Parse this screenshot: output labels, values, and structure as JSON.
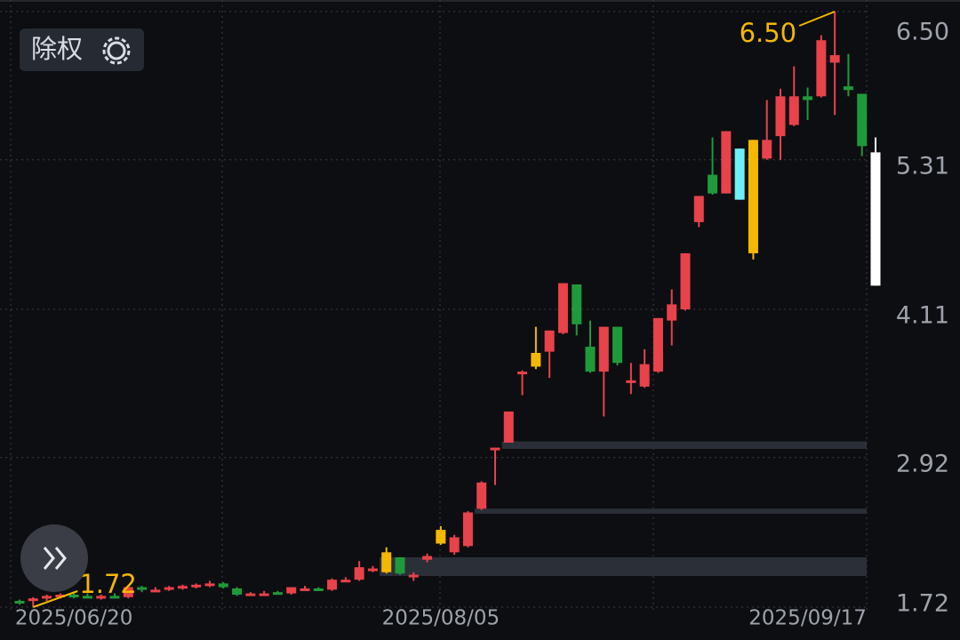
{
  "toolbar": {
    "adjust": "除权"
  },
  "chart_data": {
    "type": "candlestick",
    "categories": [
      null,
      null,
      null,
      null,
      "2025/06/20",
      null,
      null,
      null,
      null,
      null,
      null,
      null,
      null,
      null,
      null,
      null,
      null,
      null,
      null,
      null,
      null,
      null,
      null,
      null,
      null,
      null,
      null,
      null,
      null,
      null,
      null,
      "2025/08/05",
      null,
      null,
      null,
      null,
      null,
      null,
      null,
      null,
      null,
      null,
      null,
      null,
      null,
      null,
      null,
      null,
      null,
      null,
      null,
      null,
      null,
      null,
      null,
      null,
      null,
      null,
      "2025/09/17",
      null,
      null,
      null,
      null,
      null
    ],
    "open": [
      1.77,
      1.77,
      1.79,
      1.81,
      1.82,
      1.81,
      1.8,
      1.81,
      1.8,
      1.88,
      1.85,
      1.86,
      1.87,
      1.88,
      1.89,
      1.91,
      1.87,
      1.82,
      1.82,
      1.84,
      1.83,
      1.86,
      1.87,
      1.86,
      1.93,
      1.94,
      2.02,
      2.0,
      2.12,
      1.98,
      2.1,
      2.23,
      2.16,
      2.21,
      2.51,
      2.98,
      3.04,
      3.6,
      3.65,
      3.77,
      3.92,
      4.31,
      3.81,
      3.61,
      3.97,
      3.52,
      3.49,
      3.61,
      4.02,
      4.11,
      4.81,
      5.19,
      5.04,
      5.4,
      4.56,
      5.32,
      5.5,
      5.59,
      5.82,
      5.82,
      6.09,
      5.9,
      5.84,
      5.37
    ],
    "high": [
      1.78,
      1.8,
      1.82,
      1.83,
      1.84,
      1.83,
      1.82,
      1.83,
      1.89,
      1.89,
      1.88,
      1.89,
      1.9,
      1.91,
      1.93,
      1.92,
      1.88,
      1.84,
      1.85,
      1.85,
      1.88,
      1.89,
      1.88,
      1.95,
      1.96,
      2.09,
      2.05,
      2.2,
      2.12,
      2.0,
      2.15,
      2.37,
      2.3,
      2.49,
      2.73,
      3.0,
      3.29,
      3.62,
      3.97,
      3.94,
      4.32,
      4.31,
      4.02,
      3.97,
      3.97,
      3.68,
      3.79,
      4.04,
      4.27,
      4.56,
      5.02,
      5.49,
      5.54,
      5.4,
      5.47,
      5.79,
      5.88,
      6.06,
      5.89,
      6.31,
      6.5,
      6.16,
      5.84,
      5.49
    ],
    "low": [
      1.74,
      1.72,
      1.77,
      1.79,
      1.79,
      1.79,
      1.78,
      1.79,
      1.79,
      1.84,
      1.84,
      1.85,
      1.86,
      1.87,
      1.88,
      1.87,
      1.81,
      1.81,
      1.81,
      1.82,
      1.82,
      1.85,
      1.85,
      1.85,
      1.92,
      1.93,
      2.0,
      1.99,
      1.98,
      1.93,
      2.08,
      2.22,
      2.14,
      2.2,
      2.5,
      2.7,
      3.04,
      3.42,
      3.63,
      3.56,
      3.91,
      3.9,
      3.6,
      3.25,
      3.66,
      3.43,
      3.48,
      3.6,
      3.82,
      4.1,
      4.77,
      5.03,
      5.04,
      4.99,
      4.51,
      5.31,
      5.31,
      5.58,
      5.63,
      5.81,
      5.67,
      5.82,
      5.34,
      4.3
    ],
    "close": [
      1.76,
      1.79,
      1.81,
      1.82,
      1.81,
      1.8,
      1.81,
      1.8,
      1.88,
      1.86,
      1.86,
      1.88,
      1.89,
      1.9,
      1.91,
      1.88,
      1.82,
      1.83,
      1.83,
      1.83,
      1.88,
      1.87,
      1.86,
      1.94,
      1.94,
      2.04,
      2.03,
      2.16,
      1.99,
      1.96,
      2.13,
      2.34,
      2.28,
      2.48,
      2.72,
      3.0,
      3.29,
      3.61,
      3.76,
      3.94,
      4.32,
      3.99,
      3.61,
      3.97,
      3.68,
      3.54,
      3.67,
      4.04,
      4.15,
      4.56,
      5.02,
      5.04,
      5.54,
      4.99,
      5.47,
      5.47,
      5.82,
      5.82,
      5.79,
      6.27,
      6.15,
      5.87,
      5.42,
      4.3
    ],
    "colors": [
      "#1f9a3a",
      "#e8424a",
      "#e8424a",
      "#e8424a",
      "#1f9a3a",
      "#1f9a3a",
      "#e8424a",
      "#1f9a3a",
      "#e8424a",
      "#1f9a3a",
      "#e8424a",
      "#e8424a",
      "#e8424a",
      "#e8424a",
      "#e8424a",
      "#1f9a3a",
      "#1f9a3a",
      "#e8424a",
      "#e8424a",
      "#1f9a3a",
      "#e8424a",
      "#e8424a",
      "#1f9a3a",
      "#e8424a",
      "#e8424a",
      "#e8424a",
      "#e8424a",
      "#f5b800",
      "#1f9a3a",
      "#e8424a",
      "#e8424a",
      "#f5b800",
      "#e8424a",
      "#e8424a",
      "#e8424a",
      "#e8424a",
      "#e8424a",
      "#e8424a",
      "#f5b800",
      "#e8424a",
      "#e8424a",
      "#1f9a3a",
      "#1f9a3a",
      "#e8424a",
      "#1f9a3a",
      "#e8424a",
      "#e8424a",
      "#e8424a",
      "#e8424a",
      "#e8424a",
      "#e8424a",
      "#1f9a3a",
      "#e8424a",
      "#6ff0f5",
      "#f5b800",
      "#e8424a",
      "#e8424a",
      "#e8424a",
      "#1f9a3a",
      "#e8424a",
      "#e8424a",
      "#1f9a3a",
      "#1f9a3a",
      "#ffffff"
    ],
    "gaps": [
      {
        "low": 2.99,
        "high": 3.05
      },
      {
        "low": 2.47,
        "high": 2.51
      },
      {
        "low": 1.97,
        "high": 2.12
      }
    ],
    "gap_color": "#2b2f38",
    "annotations": [
      {
        "text": "6.50",
        "value": 6.5
      },
      {
        "text": "1.72",
        "value": 1.72
      }
    ],
    "annotation_color": "#f5b800",
    "ylim": [
      1.72,
      6.5
    ],
    "yticks": [
      1.72,
      2.92,
      4.11,
      5.31,
      {
        "value": 6.5,
        "label": "6.50"
      }
    ],
    "grid": true
  }
}
